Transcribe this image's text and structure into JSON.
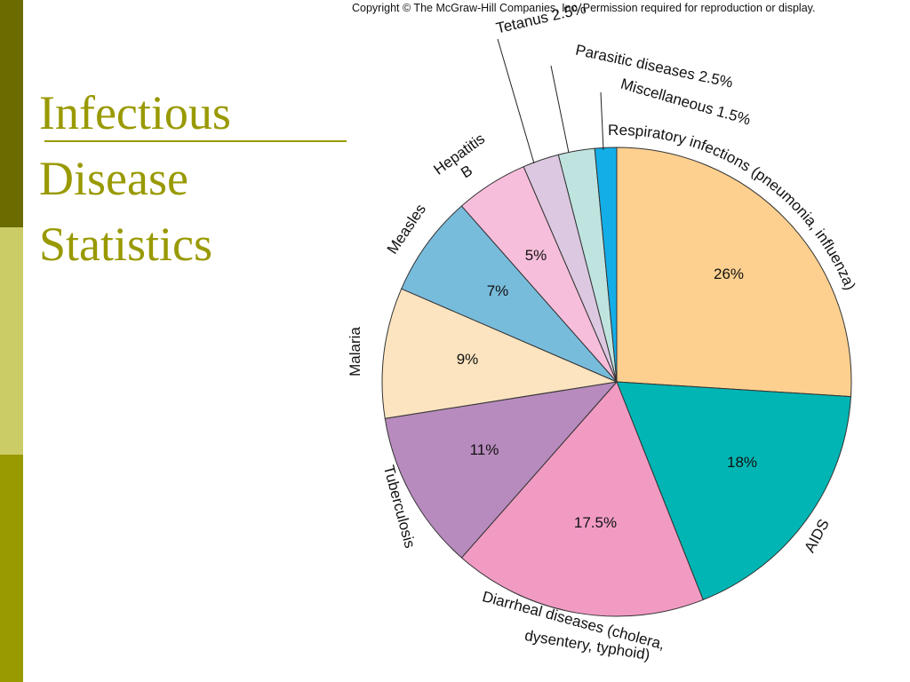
{
  "slide": {
    "title_lines": [
      "Infectious",
      "Disease",
      "Statistics"
    ],
    "copyright": "Copyright © The McGraw-Hill Companies, Inc. Permission required for reproduction or display."
  },
  "colors": {
    "sidebar_bands": [
      "#6b6b00",
      "#cccc66",
      "#999900"
    ],
    "title": "#999900"
  },
  "chart_data": {
    "type": "pie",
    "slices": [
      {
        "label": "Respiratory infections (pneumonia, influenza)",
        "value": 26,
        "value_label": "26%",
        "color": "#fdd08f"
      },
      {
        "label": "AIDS",
        "value": 18,
        "value_label": "18%",
        "color": "#00b5b3"
      },
      {
        "label": "Diarrheal diseases (cholera, dysentery, typhoid)",
        "value": 17.5,
        "value_label": "17.5%",
        "color": "#f19bc3"
      },
      {
        "label": "Tuberculosis",
        "value": 11,
        "value_label": "11%",
        "color": "#b78bbd"
      },
      {
        "label": "Malaria",
        "value": 9,
        "value_label": "9%",
        "color": "#fde4c0"
      },
      {
        "label": "Measles",
        "value": 7,
        "value_label": "7%",
        "color": "#78bcdc"
      },
      {
        "label": "Hepatitis B",
        "value": 5,
        "value_label": "5%",
        "color": "#f7bedb"
      },
      {
        "label": "Tetanus 2.5%",
        "value": 2.5,
        "value_label": "",
        "color": "#dcc8e1"
      },
      {
        "label": "Parasitic diseases 2.5%",
        "value": 2.5,
        "value_label": "",
        "color": "#bfe4e0"
      },
      {
        "label": "Miscellaneous 1.5%",
        "value": 1.5,
        "value_label": "",
        "color": "#13aee8"
      }
    ],
    "start": "12 o'clock",
    "direction": "clockwise",
    "legend": "none"
  }
}
